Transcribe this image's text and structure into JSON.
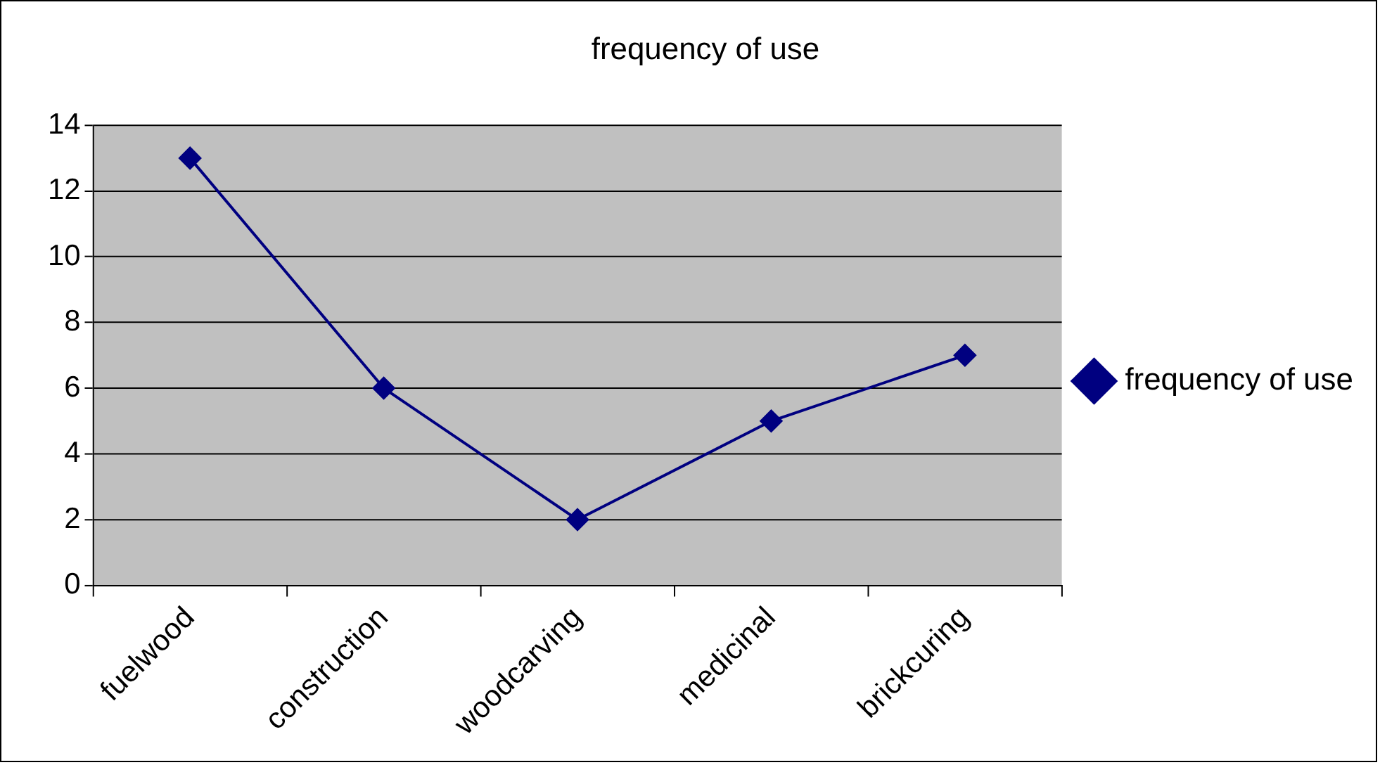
{
  "chart_data": {
    "type": "line",
    "title": "frequency of use",
    "categories": [
      "fuelwood",
      "construction",
      "woodcarving",
      "medicinal",
      "brickcuring"
    ],
    "series": [
      {
        "name": "frequency of use",
        "color": "#000080",
        "values": [
          13,
          6,
          2,
          5,
          7
        ]
      }
    ],
    "ylim": [
      0,
      14
    ],
    "yticks": [
      0,
      2,
      4,
      6,
      8,
      10,
      12,
      14
    ],
    "grid": "y",
    "legend": "right",
    "marker": "diamond",
    "line_style": "solid"
  }
}
